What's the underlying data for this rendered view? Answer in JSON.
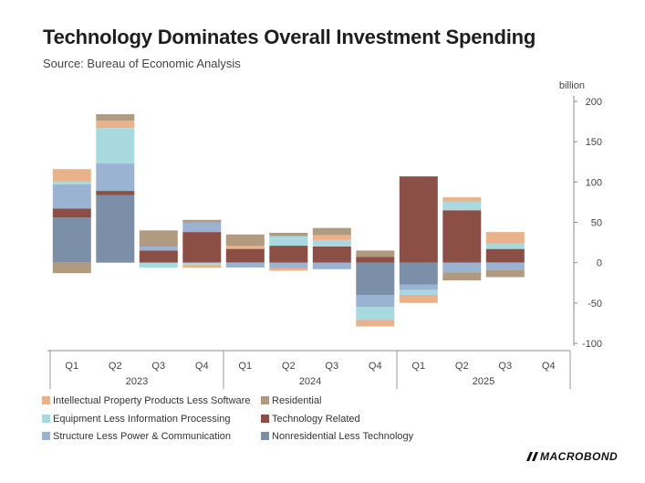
{
  "title": "Technology Dominates Overall Investment Spending",
  "subtitle": "Source: Bureau of Economic Analysis",
  "brand": "MACROBOND",
  "chart_data": {
    "type": "bar",
    "stacked": true,
    "unit_label": "billion",
    "ylim": [
      -100,
      200
    ],
    "yticks": [
      200,
      150,
      100,
      50,
      0,
      -50,
      -100
    ],
    "grid": false,
    "legend_position": "bottom",
    "categories": [
      "Q1",
      "Q2",
      "Q3",
      "Q4",
      "Q1",
      "Q2",
      "Q3",
      "Q4",
      "Q1",
      "Q2",
      "Q3",
      "Q4"
    ],
    "year_groups": [
      {
        "label": "2023",
        "start": 0,
        "end": 3
      },
      {
        "label": "2024",
        "start": 4,
        "end": 7
      },
      {
        "label": "2025",
        "start": 8,
        "end": 11
      }
    ],
    "series": [
      {
        "name": "Nonresidential Less Technology",
        "color": "#7b8fa8",
        "values": [
          56,
          84,
          0,
          0,
          0,
          0,
          0,
          -40,
          -27,
          0,
          0,
          null
        ]
      },
      {
        "name": "Technology Related",
        "color": "#8b4f45",
        "values": [
          11,
          5,
          15,
          38,
          17,
          21,
          20,
          7,
          107,
          65,
          17,
          null
        ]
      },
      {
        "name": "Structure Less Power & Communication",
        "color": "#9bb3d3",
        "values": [
          30,
          34,
          5,
          12,
          -6,
          -7,
          -8,
          -15,
          -7,
          -12,
          -9,
          null
        ]
      },
      {
        "name": "Equipment Less Information Processing",
        "color": "#a8d9de",
        "values": [
          4,
          44,
          -6,
          -3,
          0,
          12,
          8,
          -16,
          -6,
          11,
          7,
          null
        ]
      },
      {
        "name": "Intellectual Property Products Less Software",
        "color": "#eab28a",
        "values": [
          15,
          9,
          0,
          -3,
          4,
          -3,
          6,
          -8,
          -10,
          5,
          14,
          null
        ]
      },
      {
        "name": "Residential",
        "color": "#b09a80",
        "values": [
          -13,
          8,
          20,
          3,
          14,
          4,
          9,
          8,
          0,
          -10,
          -9,
          null
        ]
      }
    ],
    "legend_order": [
      "Intellectual Property Products Less Software",
      "Residential",
      "Equipment Less Information Processing",
      "Technology Related",
      "Structure Less Power & Communication",
      "Nonresidential Less Technology"
    ]
  }
}
